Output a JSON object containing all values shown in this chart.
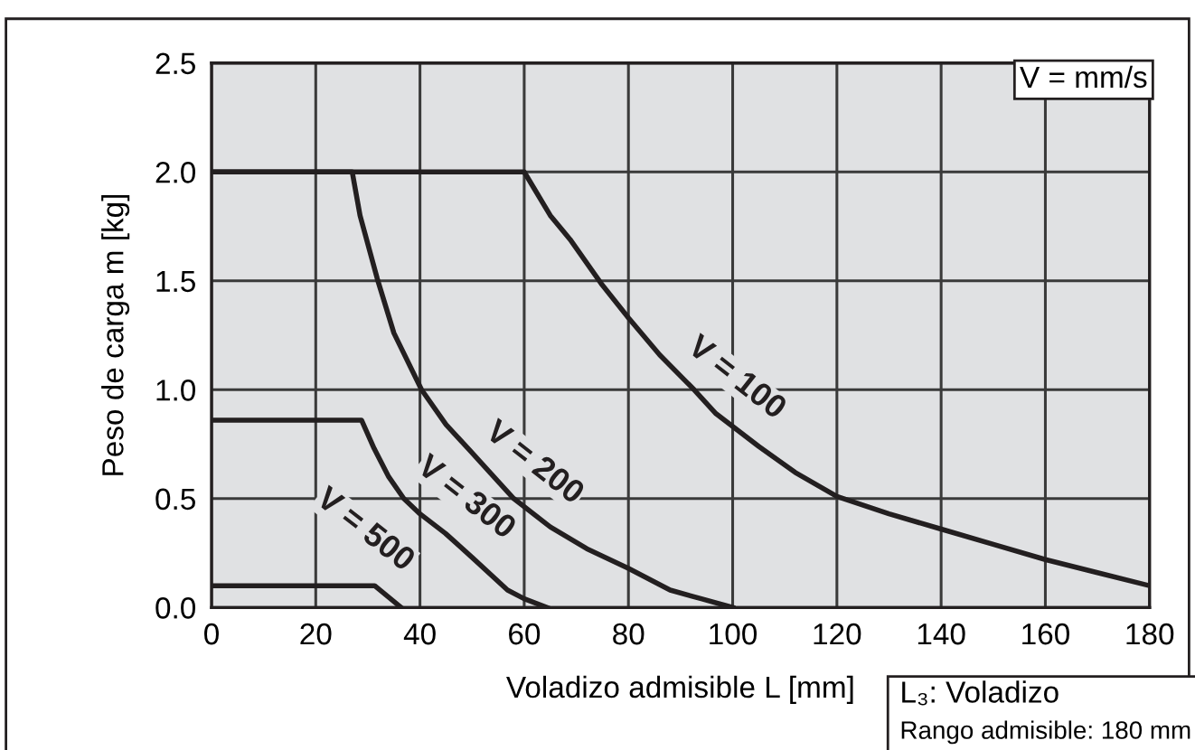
{
  "chart_data": {
    "type": "line",
    "xlabel": "Voladizo admisible L [mm]",
    "ylabel": "Peso de carga m [kg]",
    "xlim": [
      0,
      180
    ],
    "xticks": [
      0,
      20,
      40,
      60,
      80,
      100,
      120,
      140,
      160,
      180
    ],
    "ylim": [
      0,
      2.5
    ],
    "yticks": [
      {
        "value": 0,
        "label": "0.0"
      },
      {
        "value": 0.5,
        "label": "0.5"
      },
      {
        "value": 1,
        "label": "1.0"
      },
      {
        "value": 1.5,
        "label": "1.5"
      },
      {
        "value": 2,
        "label": "2.0"
      },
      {
        "value": 2.5,
        "label": "2.5"
      }
    ],
    "grid": true,
    "line_style": "solid",
    "marker": "none",
    "series": [
      {
        "name": "V = 100",
        "color": "#231f20",
        "x": [
          0,
          60,
          62,
          65,
          68.8,
          75,
          80,
          86,
          92.6,
          96.8,
          105,
          112,
          120,
          130,
          140,
          150,
          160,
          170,
          180
        ],
        "values": [
          2.0,
          2.0,
          1.92,
          1.8,
          1.69,
          1.48,
          1.33,
          1.16,
          1.0,
          0.89,
          0.74,
          0.62,
          0.51,
          0.43,
          0.36,
          0.29,
          0.22,
          0.16,
          0.1
        ]
      },
      {
        "name": "V = 200",
        "color": "#231f20",
        "x": [
          0,
          27,
          28.5,
          31.8,
          35,
          40.3,
          45,
          50,
          58,
          65,
          72,
          80,
          88,
          94,
          100
        ],
        "values": [
          2.0,
          2.0,
          1.8,
          1.51,
          1.26,
          1.0,
          0.84,
          0.71,
          0.5,
          0.37,
          0.27,
          0.18,
          0.08,
          0.04,
          0
        ]
      },
      {
        "name": "V = 300",
        "color": "#231f20",
        "x": [
          0,
          28.8,
          31.2,
          34,
          36.9,
          40,
          44.9,
          50,
          56.8,
          60,
          64.4
        ],
        "values": [
          0.86,
          0.86,
          0.73,
          0.6,
          0.5,
          0.43,
          0.34,
          0.23,
          0.08,
          0.04,
          0
        ]
      },
      {
        "name": "V = 500",
        "color": "#231f20",
        "x": [
          0,
          31.3,
          36.4
        ],
        "values": [
          0.1,
          0.1,
          0
        ]
      }
    ],
    "annotations": [
      "V = mm/s",
      "L₃: Voladizo",
      "Rango admisible: 180 mm"
    ]
  }
}
